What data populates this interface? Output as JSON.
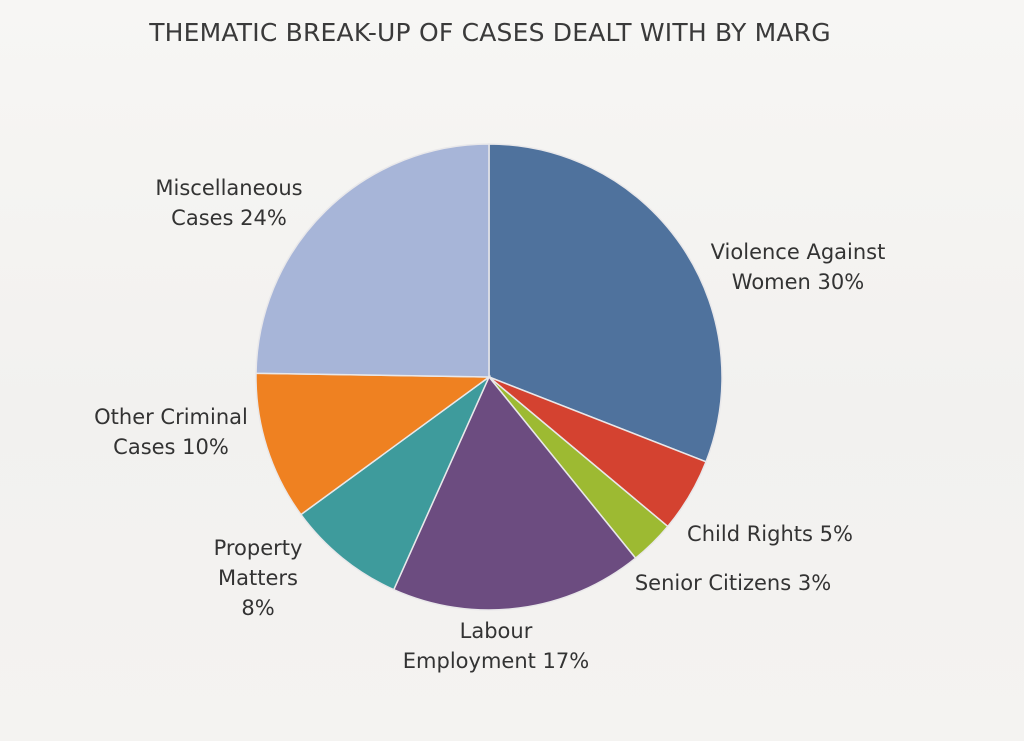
{
  "chart_data": {
    "type": "pie",
    "title": "THEMATIC BREAK-UP OF CASES DEALT WITH BY MARG",
    "slices": [
      {
        "label_lines": [
          "Violence Against",
          "Women 30%"
        ],
        "value": 30,
        "color": "#4f729d"
      },
      {
        "label_lines": [
          "Child Rights 5%"
        ],
        "value": 5,
        "color": "#d44230"
      },
      {
        "label_lines": [
          "Senior Citizens 3%"
        ],
        "value": 3,
        "color": "#9dba32"
      },
      {
        "label_lines": [
          "Labour",
          "Employment 17%"
        ],
        "value": 17,
        "color": "#6c4c80"
      },
      {
        "label_lines": [
          "Property",
          "Matters",
          "8%"
        ],
        "value": 8,
        "color": "#3e9b9c"
      },
      {
        "label_lines": [
          "Other Criminal",
          "Cases 10%"
        ],
        "value": 10,
        "color": "#ef8121"
      },
      {
        "label_lines": [
          "Miscellaneous",
          "Cases 24%"
        ],
        "value": 24,
        "color": "#a7b5d8"
      }
    ]
  }
}
